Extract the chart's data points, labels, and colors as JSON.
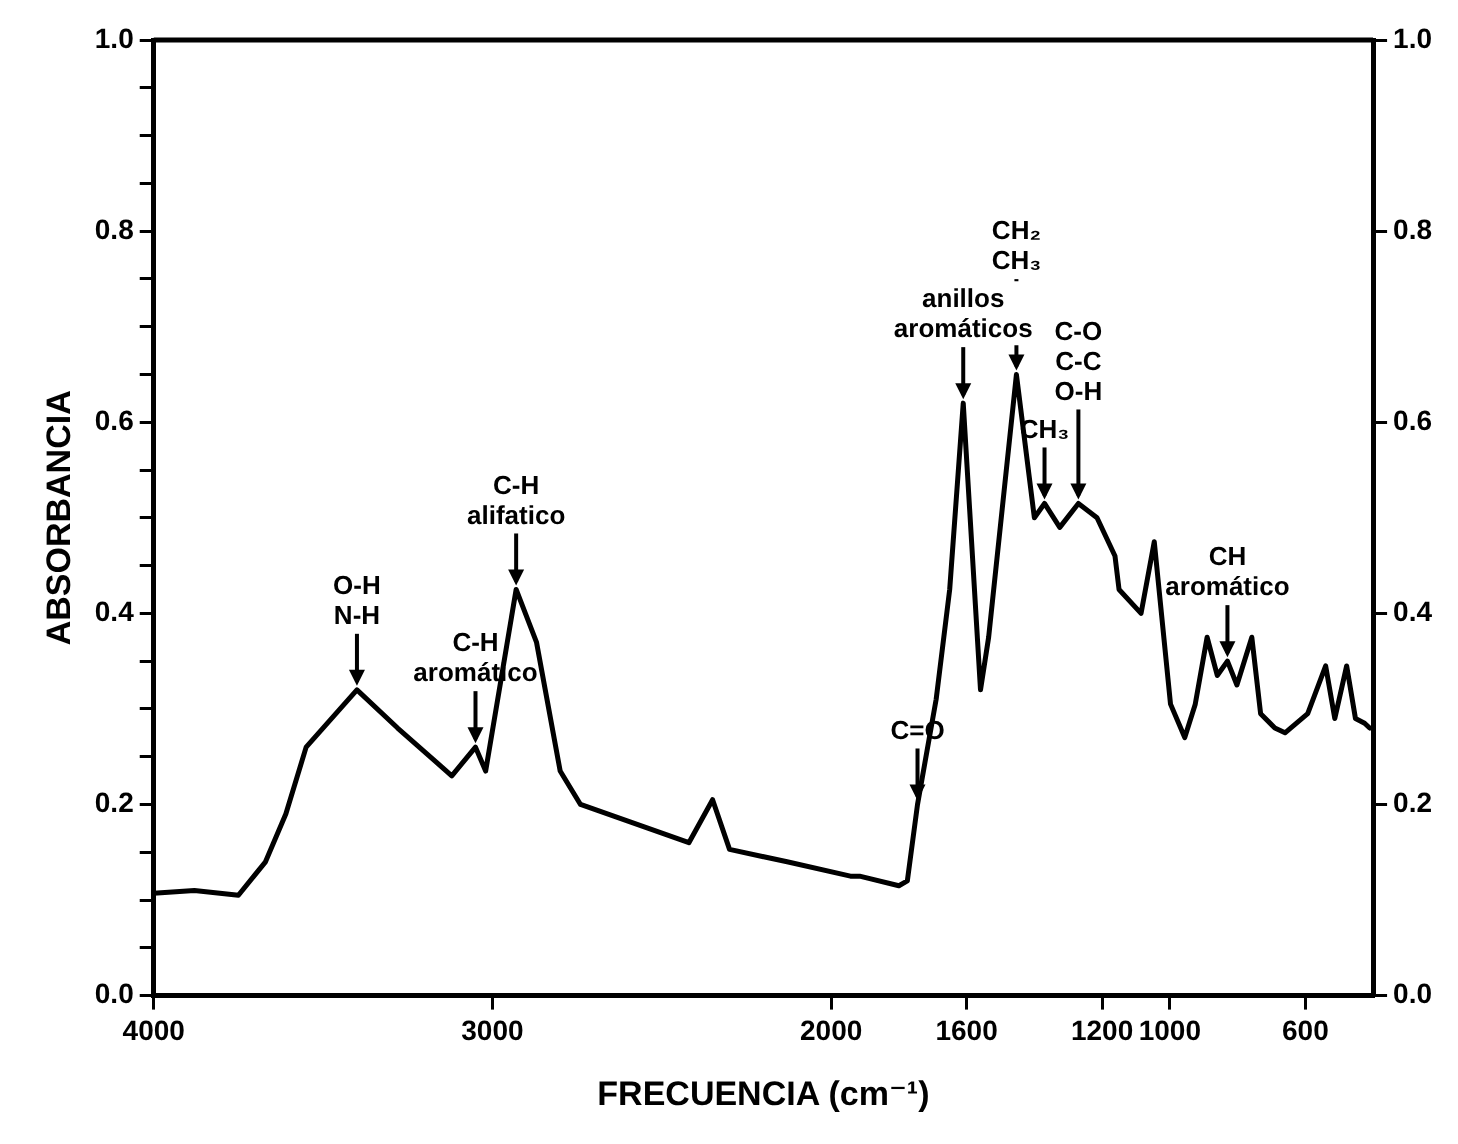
{
  "chart_data": {
    "type": "line",
    "xlabel": "FRECUENCIA (cm⁻¹)",
    "ylabel": "ABSORBANCIA",
    "x": [
      4000,
      3880,
      3750,
      3670,
      3610,
      3550,
      3400,
      3280,
      3120,
      3050,
      3020,
      2930,
      2870,
      2800,
      2740,
      2420,
      2350,
      2300,
      2130,
      1943,
      1916,
      1800,
      1775,
      1745,
      1690,
      1650,
      1610,
      1559,
      1535,
      1453,
      1400,
      1370,
      1325,
      1270,
      1215,
      1162,
      1150,
      1085,
      1046,
      998,
      956,
      925,
      890,
      860,
      830,
      802,
      758,
      732,
      690,
      660,
      593,
      540,
      513,
      478,
      452,
      425,
      410
    ],
    "series": [
      {
        "color": "#000000",
        "values": [
          0.107,
          0.11,
          0.105,
          0.14,
          0.19,
          0.26,
          0.32,
          0.28,
          0.23,
          0.26,
          0.235,
          0.425,
          0.37,
          0.235,
          0.2,
          0.16,
          0.205,
          0.153,
          0.14,
          0.125,
          0.125,
          0.115,
          0.12,
          0.2,
          0.31,
          0.425,
          0.62,
          0.32,
          0.375,
          0.65,
          0.5,
          0.515,
          0.49,
          0.515,
          0.5,
          0.46,
          0.425,
          0.4,
          0.475,
          0.305,
          0.27,
          0.305,
          0.375,
          0.335,
          0.35,
          0.325,
          0.375,
          0.295,
          0.28,
          0.275,
          0.295,
          0.345,
          0.29,
          0.345,
          0.29,
          0.285,
          0.28
        ]
      }
    ],
    "xlim": [
      4000,
      400
    ],
    "xticks": [
      4000,
      3000,
      2000,
      1600,
      1200,
      1000,
      600
    ],
    "ylim": [
      0,
      1
    ],
    "yticks": [
      {
        "value": 0,
        "label": "0.0"
      },
      {
        "value": 0.05,
        "label": null
      },
      {
        "value": 0.1,
        "label": null
      },
      {
        "value": 0.15,
        "label": null
      },
      {
        "value": 0.2,
        "label": "0.2"
      },
      {
        "value": 0.25,
        "label": null
      },
      {
        "value": 0.3,
        "label": null
      },
      {
        "value": 0.35,
        "label": null
      },
      {
        "value": 0.4,
        "label": "0.4"
      },
      {
        "value": 0.45,
        "label": null
      },
      {
        "value": 0.5,
        "label": null
      },
      {
        "value": 0.55,
        "label": null
      },
      {
        "value": 0.6,
        "label": "0.6"
      },
      {
        "value": 0.65,
        "label": null
      },
      {
        "value": 0.7,
        "label": null
      },
      {
        "value": 0.75,
        "label": null
      },
      {
        "value": 0.8,
        "label": "0.8"
      },
      {
        "value": 0.85,
        "label": null
      },
      {
        "value": 0.9,
        "label": null
      },
      {
        "value": 0.95,
        "label": null
      },
      {
        "value": 1,
        "label": "1.0"
      }
    ],
    "y2lim": [
      0,
      1
    ],
    "y2ticks": [
      {
        "value": 0,
        "label": "0.0"
      },
      {
        "value": 0.2,
        "label": "0.2"
      },
      {
        "value": 0.4,
        "label": "0.4"
      },
      {
        "value": 0.6,
        "label": "0.6"
      },
      {
        "value": 0.8,
        "label": "0.8"
      },
      {
        "value": 1,
        "label": "1.0"
      }
    ],
    "annotations": [
      {
        "text": "O-H\nN-H",
        "x": 3400,
        "y": 0.32
      },
      {
        "text": "C-H\naromático",
        "x": 3050,
        "y": 0.26
      },
      {
        "text": "C-H\nalifatico",
        "x": 2930,
        "y": 0.425
      },
      {
        "text": "C=O",
        "x": 1745,
        "y": 0.2
      },
      {
        "text": "anillos\naromáticos",
        "x": 1610,
        "y": 0.62
      },
      {
        "text": "CH₂\nCH₃",
        "x": 1453,
        "y": 0.65
      },
      {
        "text": "CH₃",
        "x": 1370,
        "y": 0.515
      },
      {
        "text": "C-O\nC-C\nO-H",
        "x": 1270,
        "y": 0.515
      },
      {
        "text": "CH\naromático",
        "x": 830,
        "y": 0.35
      }
    ],
    "grid": false,
    "legend": false,
    "marker": "none",
    "line_style": "solid"
  }
}
